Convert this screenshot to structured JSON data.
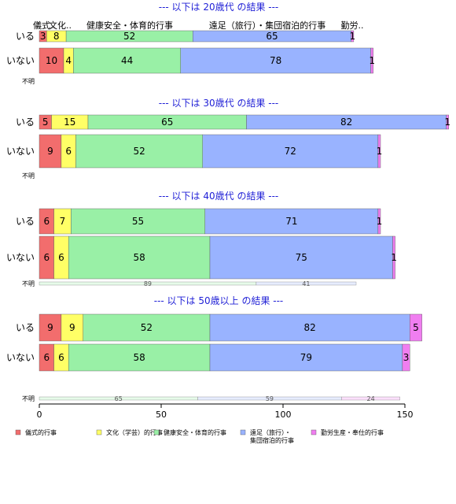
{
  "chart_data": {
    "type": "bar",
    "orientation": "horizontal",
    "stacked": true,
    "xlim": [
      0,
      150
    ],
    "xticks": [
      0,
      50,
      100,
      150
    ],
    "grid": false,
    "legend_position": "bottom",
    "colors": {
      "儀式的行事": "#f26d6d",
      "文化（学芸）的行事": "#ffff66",
      "健康安全・体育的行事": "#99f0a6",
      "遠足（旅行）・集団宿泊的行事": "#99b3ff",
      "勤労生産・奉仕的行事": "#f07ef0"
    },
    "top_labels": [
      "儀式..",
      "文化..",
      "健康安全・体育的行事",
      "遠足（旅行）・集団宿泊的行事",
      "勤労.."
    ],
    "row_label_unknown": "不明",
    "legend": [
      {
        "label": "儀式的行事",
        "key": "儀式的行事"
      },
      {
        "label": "文化（学芸）的行事",
        "key": "文化（学芸）的行事"
      },
      {
        "label": "健康安全・体育的行事",
        "key": "健康安全・体育的行事"
      },
      {
        "label": "遠足（旅行）・\n集団宿泊的行事",
        "key": "遠足（旅行）・集団宿泊的行事"
      },
      {
        "label": "勤労生産・奉仕的行事",
        "key": "勤労生産・奉仕的行事"
      }
    ],
    "panels": [
      {
        "title": "--- 以下は 20歳代 の結果 ---",
        "rows": [
          {
            "label": "いる",
            "values": [
              3,
              8,
              52,
              65,
              1
            ]
          },
          {
            "label": "いない",
            "values": [
              10,
              4,
              44,
              78,
              1
            ]
          }
        ],
        "unknown": []
      },
      {
        "title": "--- 以下は 30歳代 の結果 ---",
        "rows": [
          {
            "label": "いる",
            "values": [
              5,
              15,
              65,
              82,
              1
            ]
          },
          {
            "label": "いない",
            "values": [
              9,
              6,
              52,
              72,
              1
            ]
          }
        ],
        "unknown": []
      },
      {
        "title": "--- 以下は 40歳代 の結果 ---",
        "rows": [
          {
            "label": "いる",
            "values": [
              6,
              7,
              55,
              71,
              1
            ]
          },
          {
            "label": "いない",
            "values": [
              6,
              6,
              58,
              75,
              1
            ]
          }
        ],
        "unknown": [
          0,
          0,
          89,
          41,
          0
        ]
      },
      {
        "title": "--- 以下は 50歳以上 の結果 ---",
        "rows": [
          {
            "label": "いる",
            "values": [
              9,
              9,
              52,
              82,
              5
            ]
          },
          {
            "label": "いない",
            "values": [
              6,
              6,
              58,
              79,
              3
            ]
          }
        ],
        "unknown": [
          0,
          0,
          65,
          59,
          24
        ]
      }
    ]
  }
}
